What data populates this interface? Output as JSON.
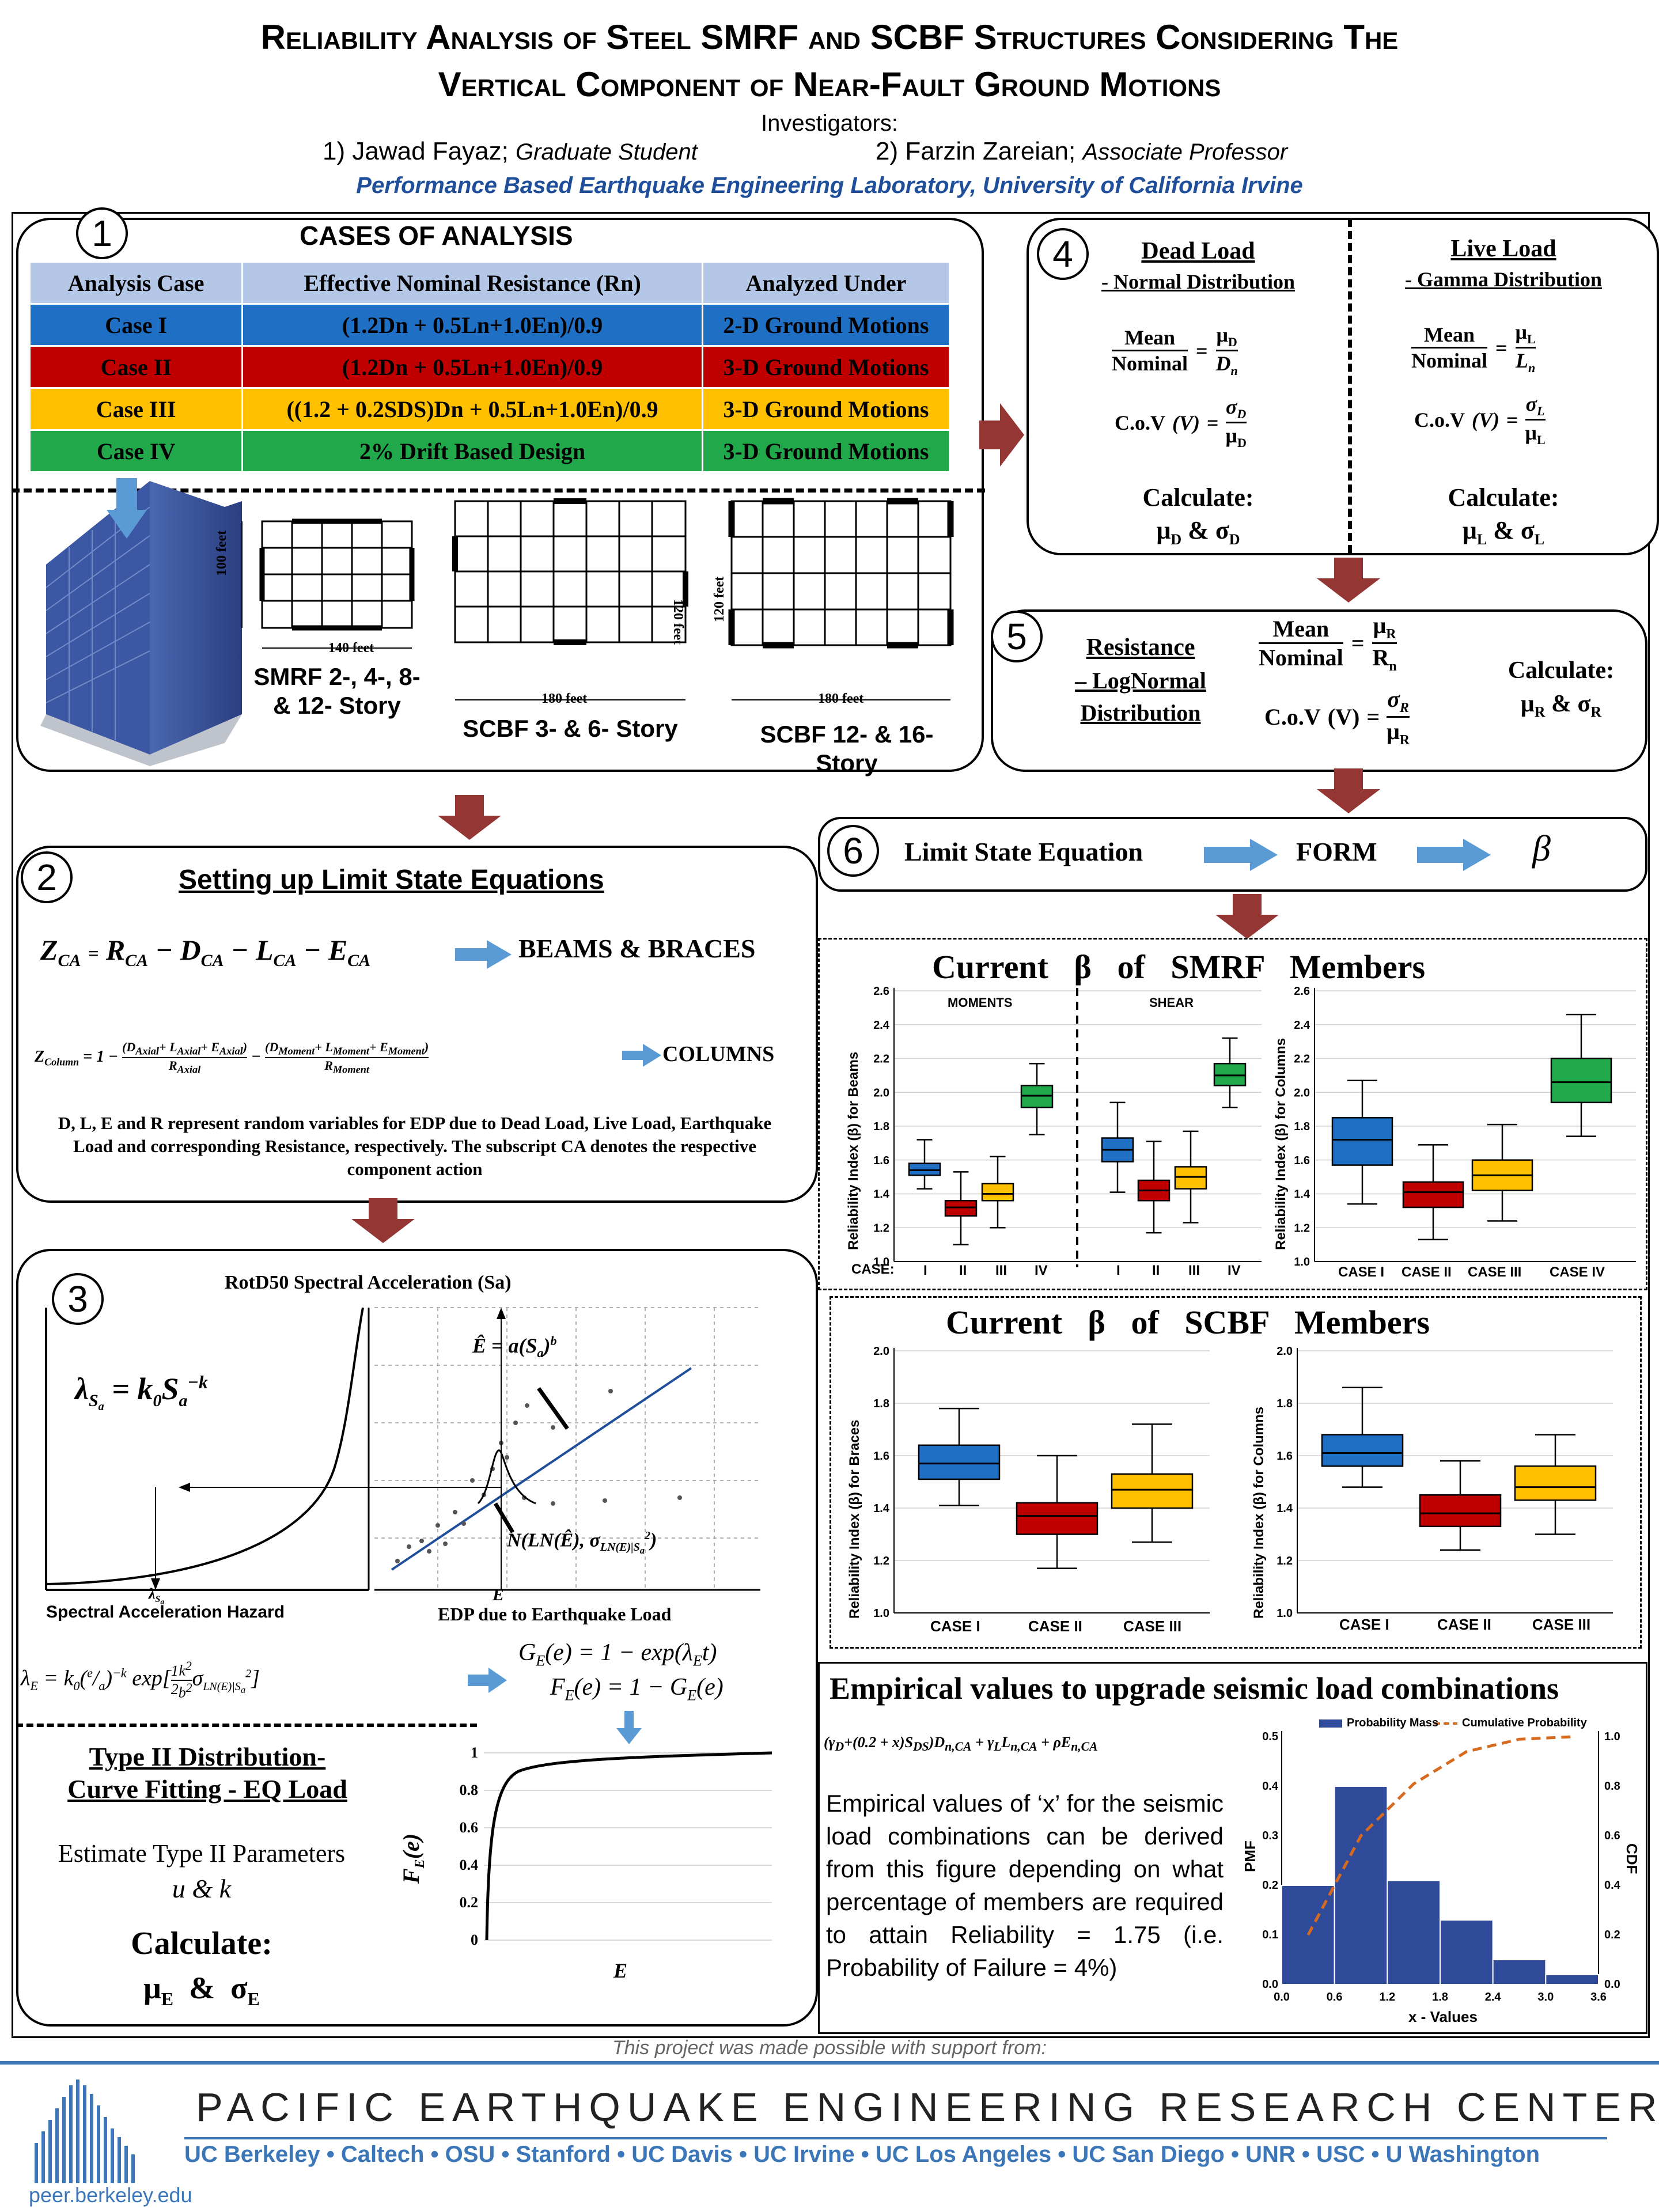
{
  "header": {
    "title_line1": "Reliability Analysis of Steel SMRF and SCBF Structures Considering The",
    "title_line2": "Vertical Component of Near-Fault Ground Motions",
    "investigators_label": "Investigators:",
    "inv1_name": "1) Jawad Fayaz;",
    "inv1_role": "Graduate Student",
    "inv2_name": "2) Farzin Zareian;",
    "inv2_role": "Associate Professor",
    "lab": "Performance Based Earthquake Engineering Laboratory, University of California Irvine"
  },
  "s1": {
    "num": "1",
    "title": "CASES OF ANALYSIS",
    "headers": [
      "Analysis Case",
      "Effective Nominal Resistance (Rn)",
      "Analyzed Under"
    ],
    "rows": [
      {
        "case": "Case I",
        "formula": "(1.2Dn + 0.5Ln+1.0En)/0.9",
        "under": "2-D Ground Motions",
        "color": "#1f6fc5"
      },
      {
        "case": "Case II",
        "formula": "(1.2Dn + 0.5Ln+1.0En)/0.9",
        "under": "3-D Ground Motions",
        "color": "#c00000"
      },
      {
        "case": "Case III",
        "formula": "((1.2 + 0.2SDS)Dn + 0.5Ln+1.0En)/0.9",
        "under": "3-D Ground Motions",
        "color": "#ffc000"
      },
      {
        "case": "Case IV",
        "formula": "2% Drift Based Design",
        "under": "3-D Ground Motions",
        "color": "#21a84a"
      }
    ],
    "plans": [
      {
        "label": "SMRF 2-, 4-, 8- & 12- Story",
        "width": "140 feet",
        "height": "100 feet"
      },
      {
        "label": "SCBF 3- & 6- Story",
        "width": "180 feet",
        "height": "120 feet"
      },
      {
        "label": "SCBF 12- & 16- Story",
        "width": "180 feet",
        "height": "120 feet"
      }
    ]
  },
  "s2": {
    "num": "2",
    "title": "Setting up Limit State Equations",
    "beams_label": "BEAMS & BRACES",
    "columns_label": "COLUMNS",
    "description": "D, L, E and R represent random variables for EDP due to Dead Load, Live Load, Earthquake Load and corresponding Resistance, respectively. The subscript CA denotes the respective component action"
  },
  "s3": {
    "num": "3",
    "chart_title": "RotD50 Spectral Acceleration (Sa)",
    "hazard_label": "Spectral Acceleration Hazard",
    "edp_label": "EDP due to Earthquake Load",
    "e_label": "E",
    "type2_title1": "Type II Distribution-",
    "type2_title2": "Curve Fitting - EQ Load",
    "estimate": "Estimate Type II Parameters",
    "params": "u & k",
    "calculate": "Calculate:",
    "fe_ticks": [
      "1",
      "0.8",
      "0.6",
      "0.4",
      "0.2",
      "0"
    ]
  },
  "s4": {
    "num": "4",
    "dead_title": "Dead Load",
    "dead_sub": "- Normal Distribution",
    "live_title": "Live Load",
    "live_sub": "- Gamma Distribution",
    "mean": "Mean",
    "nominal": "Nominal",
    "cov": "C.o.V",
    "calculate": "Calculate:"
  },
  "s5": {
    "num": "5",
    "title": "Resistance",
    "sub1": "– LogNormal",
    "sub2": "Distribution",
    "mean": "Mean",
    "nominal": "Nominal",
    "cov": "C.o.V",
    "calculate": "Calculate:"
  },
  "s6": {
    "num": "6",
    "lse": "Limit State Equation",
    "form": "FORM",
    "beta": "β"
  },
  "smrf": {
    "title": "Current β of SMRF Members",
    "ylabel_beams": "Reliability Index (β) for Beams",
    "ylabel_cols": "Reliability Index (β) for Columns",
    "moments": "MOMENTS",
    "shear": "SHEAR",
    "case_label": "CASE:",
    "roman": [
      "I",
      "II",
      "III",
      "IV"
    ],
    "col_cases": [
      "CASE I",
      "CASE II",
      "CASE III",
      "CASE IV"
    ]
  },
  "scbf": {
    "title": "Current β of SCBF Members",
    "ylabel_braces": "Reliability Index (β) for Braces",
    "ylabel_cols": "Reliability Index (β) for Columns",
    "cases": [
      "CASE I",
      "CASE II",
      "CASE III"
    ]
  },
  "emp": {
    "title": "Empirical values to upgrade seismic load combinations",
    "text": "Empirical values of ‘x’ for the seismic load combinations can be derived from this figure depending on what percentage of members are required to attain Reliability = 1.75 (i.e. Probability of Failure = 4%)",
    "legend_pm": "Probability Mass",
    "legend_cp": "Cumulative Probability",
    "xlabel": "x - Values",
    "ylabel_left": "PMF",
    "ylabel_right": "CDF"
  },
  "footer": {
    "support": "This project was made possible with support from:",
    "center": "PACIFIC EARTHQUAKE ENGINEERING RESEARCH CENTER",
    "members": "UC Berkeley • Caltech • OSU • Stanford • UC Davis • UC Irvine • UC Los Angeles • UC San Diego • UNR • USC • U Washington",
    "url": "peer.berkeley.edu"
  },
  "colors": {
    "blue": "#1f6fc5",
    "red": "#c00000",
    "yellow": "#ffc000",
    "green": "#21a84a",
    "arrow": "#943634",
    "peer": "#3a76b8"
  },
  "chart_data": [
    {
      "type": "box",
      "title": "Current β of SMRF Members",
      "ylabel": "Reliability Index (β) for Beams",
      "ylim": [
        1.0,
        2.6
      ],
      "groups": [
        "MOMENTS",
        "SHEAR"
      ],
      "categories": [
        "I",
        "II",
        "III",
        "IV"
      ],
      "series": [
        {
          "name": "MOMENTS",
          "boxes": [
            [
              1.43,
              1.51,
              1.54,
              1.58,
              1.72
            ],
            [
              1.1,
              1.27,
              1.32,
              1.36,
              1.53
            ],
            [
              1.2,
              1.36,
              1.4,
              1.46,
              1.62
            ],
            [
              1.75,
              1.91,
              1.98,
              2.04,
              2.17
            ]
          ]
        },
        {
          "name": "SHEAR",
          "boxes": [
            [
              1.41,
              1.59,
              1.66,
              1.73,
              1.94
            ],
            [
              1.17,
              1.36,
              1.42,
              1.48,
              1.71
            ],
            [
              1.23,
              1.43,
              1.5,
              1.56,
              1.77
            ],
            [
              1.91,
              2.04,
              2.1,
              2.17,
              2.32
            ]
          ]
        }
      ]
    },
    {
      "type": "box",
      "ylabel": "Reliability Index (β) for Columns",
      "ylim": [
        1.0,
        2.6
      ],
      "categories": [
        "CASE I",
        "CASE II",
        "CASE III",
        "CASE IV"
      ],
      "boxes": [
        [
          1.34,
          1.57,
          1.72,
          1.85,
          2.07
        ],
        [
          1.13,
          1.32,
          1.41,
          1.47,
          1.69
        ],
        [
          1.24,
          1.42,
          1.51,
          1.6,
          1.81
        ],
        [
          1.74,
          1.94,
          2.06,
          2.2,
          2.46
        ]
      ]
    },
    {
      "type": "box",
      "title": "Current β of SCBF Members",
      "ylabel": "Reliability Index (β) for Braces",
      "ylim": [
        1.0,
        2.0
      ],
      "categories": [
        "CASE I",
        "CASE II",
        "CASE III"
      ],
      "boxes": [
        [
          1.41,
          1.51,
          1.57,
          1.64,
          1.78
        ],
        [
          1.17,
          1.3,
          1.37,
          1.42,
          1.6
        ],
        [
          1.27,
          1.4,
          1.47,
          1.53,
          1.72
        ]
      ]
    },
    {
      "type": "box",
      "ylabel": "Reliability Index (β) for Columns",
      "ylim": [
        1.0,
        2.0
      ],
      "categories": [
        "CASE I",
        "CASE II",
        "CASE III"
      ],
      "boxes": [
        [
          1.48,
          1.56,
          1.61,
          1.68,
          1.86
        ],
        [
          1.24,
          1.33,
          1.38,
          1.45,
          1.58
        ],
        [
          1.3,
          1.43,
          1.48,
          1.56,
          1.68
        ]
      ]
    },
    {
      "type": "bar",
      "xlabel": "x - Values",
      "ylabel": "PMF",
      "ylabel_right": "CDF",
      "x_ticks": [
        0.0,
        0.6,
        1.2,
        1.8,
        2.4,
        3.0,
        3.6
      ],
      "bins": [
        [
          0.0,
          0.6
        ],
        [
          0.6,
          1.2
        ],
        [
          1.2,
          1.8
        ],
        [
          1.8,
          2.4
        ],
        [
          2.4,
          3.0
        ],
        [
          3.0,
          3.6
        ]
      ],
      "series": [
        {
          "name": "Probability Mass",
          "values": [
            0.2,
            0.4,
            0.21,
            0.13,
            0.05,
            0.02
          ]
        },
        {
          "name": "Cumulative Probability",
          "x": [
            0.3,
            0.9,
            1.5,
            2.1,
            2.7,
            3.3
          ],
          "values": [
            0.2,
            0.6,
            0.81,
            0.94,
            0.99,
            1.0
          ]
        }
      ],
      "ylim": [
        0,
        0.5
      ],
      "ylim_right": [
        0,
        1.0
      ]
    }
  ]
}
